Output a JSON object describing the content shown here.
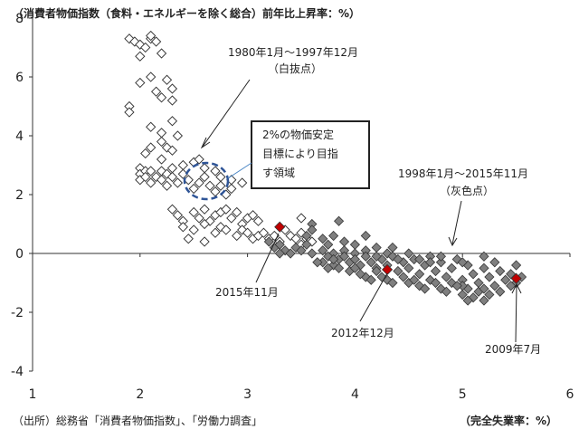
{
  "chart_data": {
    "type": "scatter",
    "title": "（消費者物価指数（食料・エネルギーを除く総合）前年比上昇率：%）",
    "xlabel": "（完全失業率：%）",
    "source": "（出所）総務省「消費者物価指数」、「労働力調査」",
    "xlim": [
      1,
      6
    ],
    "ylim": [
      -4,
      8
    ],
    "xticks": [
      1,
      2,
      3,
      4,
      5,
      6
    ],
    "yticks": [
      -4,
      -2,
      0,
      2,
      4,
      6,
      8
    ],
    "grid": false,
    "series": [
      {
        "name": "1980年1月～1997年12月（白抜点）",
        "marker": "diamond-open",
        "points": [
          [
            1.9,
            7.3
          ],
          [
            1.95,
            7.2
          ],
          [
            2.0,
            6.7
          ],
          [
            2.0,
            7.1
          ],
          [
            2.05,
            7.0
          ],
          [
            2.1,
            7.3
          ],
          [
            2.1,
            7.4
          ],
          [
            2.15,
            7.2
          ],
          [
            2.2,
            6.8
          ],
          [
            2.0,
            5.8
          ],
          [
            2.1,
            6.0
          ],
          [
            2.15,
            5.5
          ],
          [
            2.25,
            5.9
          ],
          [
            2.3,
            5.6
          ],
          [
            2.2,
            5.3
          ],
          [
            2.3,
            5.2
          ],
          [
            1.9,
            5.0
          ],
          [
            1.9,
            4.8
          ],
          [
            2.1,
            4.3
          ],
          [
            2.2,
            4.1
          ],
          [
            2.3,
            4.5
          ],
          [
            2.35,
            4.0
          ],
          [
            2.2,
            3.8
          ],
          [
            2.25,
            3.6
          ],
          [
            2.1,
            3.6
          ],
          [
            2.05,
            3.4
          ],
          [
            2.2,
            3.2
          ],
          [
            2.3,
            3.5
          ],
          [
            2.3,
            2.9
          ],
          [
            2.4,
            3.0
          ],
          [
            2.5,
            3.1
          ],
          [
            2.55,
            3.2
          ],
          [
            2.6,
            2.9
          ],
          [
            2.7,
            2.8
          ],
          [
            2.75,
            2.6
          ],
          [
            2.85,
            2.5
          ],
          [
            2.95,
            2.4
          ],
          [
            2.0,
            2.9
          ],
          [
            2.0,
            2.7
          ],
          [
            2.0,
            2.5
          ],
          [
            2.05,
            2.8
          ],
          [
            2.05,
            2.6
          ],
          [
            2.1,
            2.4
          ],
          [
            2.1,
            2.8
          ],
          [
            2.15,
            2.6
          ],
          [
            2.2,
            2.8
          ],
          [
            2.2,
            2.5
          ],
          [
            2.25,
            2.7
          ],
          [
            2.25,
            2.3
          ],
          [
            2.3,
            2.6
          ],
          [
            2.35,
            2.4
          ],
          [
            2.4,
            2.7
          ],
          [
            2.45,
            2.5
          ],
          [
            2.5,
            2.2
          ],
          [
            2.55,
            2.4
          ],
          [
            2.6,
            2.6
          ],
          [
            2.65,
            2.3
          ],
          [
            2.7,
            2.1
          ],
          [
            2.75,
            2.3
          ],
          [
            2.8,
            2.0
          ],
          [
            2.85,
            2.2
          ],
          [
            2.3,
            1.5
          ],
          [
            2.35,
            1.3
          ],
          [
            2.4,
            1.1
          ],
          [
            2.5,
            1.4
          ],
          [
            2.55,
            1.2
          ],
          [
            2.6,
            1.5
          ],
          [
            2.65,
            1.1
          ],
          [
            2.7,
            1.3
          ],
          [
            2.75,
            1.4
          ],
          [
            2.8,
            1.5
          ],
          [
            2.85,
            1.2
          ],
          [
            2.9,
            1.4
          ],
          [
            2.95,
            1.0
          ],
          [
            3.0,
            1.2
          ],
          [
            3.05,
            1.3
          ],
          [
            3.1,
            1.1
          ],
          [
            2.4,
            0.9
          ],
          [
            2.5,
            0.8
          ],
          [
            2.6,
            1.0
          ],
          [
            2.7,
            0.7
          ],
          [
            2.75,
            0.9
          ],
          [
            2.8,
            0.8
          ],
          [
            2.9,
            0.6
          ],
          [
            2.95,
            0.8
          ],
          [
            3.0,
            0.7
          ],
          [
            3.05,
            0.5
          ],
          [
            3.1,
            0.6
          ],
          [
            3.15,
            0.7
          ],
          [
            3.2,
            0.5
          ],
          [
            3.25,
            0.6
          ],
          [
            3.3,
            0.4
          ],
          [
            3.35,
            0.8
          ],
          [
            3.4,
            0.6
          ],
          [
            3.45,
            0.5
          ],
          [
            3.5,
            0.3
          ],
          [
            3.55,
            0.5
          ],
          [
            3.6,
            0.4
          ],
          [
            3.5,
            0.7
          ],
          [
            3.5,
            1.2
          ],
          [
            2.45,
            0.5
          ],
          [
            2.6,
            0.4
          ]
        ]
      },
      {
        "name": "1998年1月～2015年11月（灰色点）",
        "marker": "diamond-gray",
        "points": [
          [
            3.2,
            0.4
          ],
          [
            3.25,
            0.2
          ],
          [
            3.3,
            0.3
          ],
          [
            3.35,
            0.1
          ],
          [
            3.4,
            0.0
          ],
          [
            3.45,
            0.2
          ],
          [
            3.5,
            0.1
          ],
          [
            3.55,
            0.3
          ],
          [
            3.6,
            0.0
          ],
          [
            3.3,
            0.0
          ],
          [
            3.6,
            1.0
          ],
          [
            3.6,
            0.8
          ],
          [
            3.55,
            0.6
          ],
          [
            3.7,
            0.5
          ],
          [
            3.75,
            0.3
          ],
          [
            3.8,
            0.6
          ],
          [
            3.85,
            1.1
          ],
          [
            3.9,
            0.4
          ],
          [
            4.0,
            0.3
          ],
          [
            4.1,
            0.6
          ],
          [
            3.7,
            0.1
          ],
          [
            3.8,
            0.0
          ],
          [
            3.9,
            0.1
          ],
          [
            4.0,
            0.0
          ],
          [
            4.1,
            0.1
          ],
          [
            4.2,
            0.2
          ],
          [
            4.3,
            0.0
          ],
          [
            4.35,
            0.2
          ],
          [
            3.7,
            -0.3
          ],
          [
            3.75,
            -0.1
          ],
          [
            3.8,
            -0.4
          ],
          [
            3.85,
            -0.2
          ],
          [
            3.9,
            -0.1
          ],
          [
            3.95,
            -0.3
          ],
          [
            4.0,
            -0.2
          ],
          [
            4.05,
            -0.4
          ],
          [
            4.1,
            -0.1
          ],
          [
            4.15,
            -0.3
          ],
          [
            4.2,
            -0.5
          ],
          [
            4.25,
            -0.2
          ],
          [
            4.3,
            -0.4
          ],
          [
            4.35,
            -0.1
          ],
          [
            4.4,
            -0.6
          ],
          [
            4.45,
            -0.3
          ],
          [
            4.5,
            -0.5
          ],
          [
            4.55,
            -0.2
          ],
          [
            4.6,
            -0.7
          ],
          [
            4.65,
            -0.4
          ],
          [
            4.7,
            -0.1
          ],
          [
            4.75,
            -0.6
          ],
          [
            4.8,
            -0.3
          ],
          [
            4.85,
            -0.8
          ],
          [
            4.9,
            -0.5
          ],
          [
            4.95,
            -0.2
          ],
          [
            5.0,
            -0.9
          ],
          [
            5.05,
            -0.4
          ],
          [
            5.1,
            -0.7
          ],
          [
            5.15,
            -1.0
          ],
          [
            5.2,
            -0.5
          ],
          [
            5.25,
            -0.8
          ],
          [
            5.3,
            -0.3
          ],
          [
            5.35,
            -0.6
          ],
          [
            5.4,
            -0.9
          ],
          [
            5.45,
            -0.7
          ],
          [
            5.5,
            -0.4
          ],
          [
            5.5,
            -1.0
          ],
          [
            5.55,
            -0.8
          ],
          [
            5.45,
            -1.1
          ],
          [
            4.1,
            -0.8
          ],
          [
            4.2,
            -0.6
          ],
          [
            4.3,
            -0.9
          ],
          [
            4.5,
            -1.0
          ],
          [
            4.6,
            -1.1
          ],
          [
            4.7,
            -0.9
          ],
          [
            4.8,
            -1.2
          ],
          [
            4.9,
            -1.0
          ],
          [
            5.0,
            -1.4
          ],
          [
            5.05,
            -1.2
          ],
          [
            5.1,
            -1.5
          ],
          [
            5.15,
            -1.3
          ],
          [
            5.2,
            -1.6
          ],
          [
            5.25,
            -1.4
          ],
          [
            5.3,
            -1.1
          ],
          [
            5.35,
            -1.3
          ],
          [
            5.0,
            -1.1
          ],
          [
            4.45,
            -0.8
          ],
          [
            4.55,
            -0.9
          ],
          [
            4.65,
            -1.2
          ],
          [
            4.75,
            -1.0
          ],
          [
            4.85,
            -1.3
          ],
          [
            4.95,
            -1.1
          ],
          [
            5.05,
            -1.6
          ],
          [
            5.2,
            -1.2
          ],
          [
            3.65,
            -0.3
          ],
          [
            3.75,
            -0.5
          ],
          [
            3.85,
            -0.5
          ],
          [
            3.95,
            -0.6
          ],
          [
            4.05,
            -0.7
          ],
          [
            4.15,
            -0.9
          ],
          [
            4.25,
            -0.8
          ],
          [
            4.35,
            -1.0
          ],
          [
            4.4,
            -0.2
          ],
          [
            4.6,
            -0.2
          ],
          [
            4.8,
            -0.1
          ],
          [
            5.0,
            -0.3
          ],
          [
            5.2,
            -0.1
          ],
          [
            4.2,
            -0.1
          ],
          [
            4.0,
            -0.5
          ],
          [
            3.8,
            -0.2
          ],
          [
            4.5,
            0.0
          ],
          [
            4.7,
            -0.3
          ]
        ]
      },
      {
        "name": "highlighted",
        "marker": "diamond-red",
        "points": [
          [
            3.3,
            0.9
          ],
          [
            4.3,
            -0.55
          ],
          [
            5.5,
            -0.85
          ]
        ]
      }
    ],
    "annotations": [
      {
        "text": "1980年1月～1997年12月",
        "sub": "（白抜点）"
      },
      {
        "text": "1998年1月～2015年11月",
        "sub": "（灰色点）"
      },
      {
        "text": "2015年11月",
        "target": [
          3.3,
          0.9
        ]
      },
      {
        "text": "2012年12月",
        "target": [
          4.3,
          -0.55
        ]
      },
      {
        "text": "2009年7月",
        "target": [
          5.5,
          -0.85
        ]
      }
    ],
    "target_box": {
      "lines": [
        "2%の物価安定",
        "目標により目指",
        "す領域"
      ]
    }
  }
}
